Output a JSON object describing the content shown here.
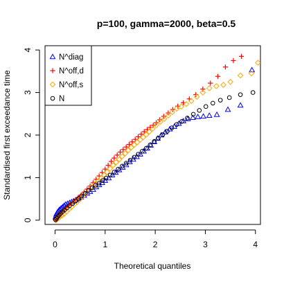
{
  "chart_data": {
    "type": "scatter",
    "title": "p=100, gamma=2000, beta=0.5",
    "xlabel": "Theoretical quantiles",
    "ylabel": "Standardised first exceedance time",
    "xlim": [
      -0.2,
      4.1
    ],
    "ylim": [
      -0.1,
      4.1
    ],
    "xticks": [
      0,
      1,
      2,
      3,
      4
    ],
    "yticks": [
      0,
      1,
      2,
      3,
      4
    ],
    "legend_position": "top-left",
    "grid": false,
    "series": [
      {
        "name": "N^diag",
        "marker": "triangle",
        "color": "#0000ff",
        "points": [
          [
            0.01,
            0.07
          ],
          [
            0.02,
            0.11
          ],
          [
            0.03,
            0.15
          ],
          [
            0.05,
            0.19
          ],
          [
            0.07,
            0.22
          ],
          [
            0.09,
            0.25
          ],
          [
            0.12,
            0.28
          ],
          [
            0.15,
            0.31
          ],
          [
            0.18,
            0.34
          ],
          [
            0.21,
            0.37
          ],
          [
            0.25,
            0.39
          ],
          [
            0.29,
            0.41
          ],
          [
            0.33,
            0.43
          ],
          [
            0.37,
            0.45
          ],
          [
            0.42,
            0.48
          ],
          [
            0.47,
            0.51
          ],
          [
            0.52,
            0.54
          ],
          [
            0.58,
            0.58
          ],
          [
            0.64,
            0.63
          ],
          [
            0.7,
            0.67
          ],
          [
            0.76,
            0.72
          ],
          [
            0.82,
            0.78
          ],
          [
            0.88,
            0.83
          ],
          [
            0.94,
            0.88
          ],
          [
            1.0,
            0.93
          ],
          [
            1.07,
            0.99
          ],
          [
            1.14,
            1.06
          ],
          [
            1.21,
            1.12
          ],
          [
            1.28,
            1.18
          ],
          [
            1.35,
            1.24
          ],
          [
            1.42,
            1.3
          ],
          [
            1.49,
            1.37
          ],
          [
            1.56,
            1.43
          ],
          [
            1.63,
            1.49
          ],
          [
            1.7,
            1.55
          ],
          [
            1.77,
            1.62
          ],
          [
            1.84,
            1.69
          ],
          [
            1.91,
            1.76
          ],
          [
            1.98,
            1.84
          ],
          [
            2.05,
            1.92
          ],
          [
            2.12,
            2.0
          ],
          [
            2.2,
            2.07
          ],
          [
            2.29,
            2.14
          ],
          [
            2.38,
            2.2
          ],
          [
            2.47,
            2.27
          ],
          [
            2.56,
            2.33
          ],
          [
            2.65,
            2.38
          ],
          [
            2.75,
            2.41
          ],
          [
            2.85,
            2.43
          ],
          [
            2.96,
            2.44
          ],
          [
            3.08,
            2.46
          ],
          [
            3.23,
            2.48
          ],
          [
            3.45,
            2.6
          ],
          [
            3.7,
            2.7
          ],
          [
            3.93,
            3.53
          ]
        ]
      },
      {
        "name": "N^off,d",
        "marker": "plus",
        "color": "#ff0000",
        "points": [
          [
            0.01,
            0.0
          ],
          [
            0.03,
            0.03
          ],
          [
            0.05,
            0.06
          ],
          [
            0.08,
            0.1
          ],
          [
            0.11,
            0.14
          ],
          [
            0.15,
            0.19
          ],
          [
            0.19,
            0.24
          ],
          [
            0.24,
            0.3
          ],
          [
            0.29,
            0.36
          ],
          [
            0.34,
            0.41
          ],
          [
            0.4,
            0.47
          ],
          [
            0.46,
            0.53
          ],
          [
            0.52,
            0.59
          ],
          [
            0.58,
            0.66
          ],
          [
            0.64,
            0.73
          ],
          [
            0.7,
            0.8
          ],
          [
            0.76,
            0.88
          ],
          [
            0.82,
            0.96
          ],
          [
            0.88,
            1.04
          ],
          [
            0.94,
            1.12
          ],
          [
            1.0,
            1.2
          ],
          [
            1.06,
            1.29
          ],
          [
            1.12,
            1.38
          ],
          [
            1.18,
            1.46
          ],
          [
            1.24,
            1.53
          ],
          [
            1.3,
            1.6
          ],
          [
            1.36,
            1.66
          ],
          [
            1.42,
            1.72
          ],
          [
            1.48,
            1.78
          ],
          [
            1.54,
            1.84
          ],
          [
            1.6,
            1.9
          ],
          [
            1.66,
            1.96
          ],
          [
            1.72,
            2.02
          ],
          [
            1.78,
            2.08
          ],
          [
            1.84,
            2.13
          ],
          [
            1.9,
            2.18
          ],
          [
            1.96,
            2.23
          ],
          [
            2.02,
            2.29
          ],
          [
            2.09,
            2.36
          ],
          [
            2.17,
            2.44
          ],
          [
            2.26,
            2.52
          ],
          [
            2.35,
            2.6
          ],
          [
            2.45,
            2.68
          ],
          [
            2.56,
            2.76
          ],
          [
            2.68,
            2.85
          ],
          [
            2.81,
            2.95
          ],
          [
            2.95,
            3.08
          ],
          [
            3.1,
            3.22
          ],
          [
            3.25,
            3.38
          ],
          [
            3.4,
            3.6
          ],
          [
            3.56,
            3.75
          ],
          [
            3.72,
            3.85
          ]
        ]
      },
      {
        "name": "N^off,s",
        "marker": "diamond",
        "color": "#ffa500",
        "points": [
          [
            0.02,
            0.0
          ],
          [
            0.04,
            0.02
          ],
          [
            0.07,
            0.05
          ],
          [
            0.1,
            0.08
          ],
          [
            0.14,
            0.11
          ],
          [
            0.18,
            0.15
          ],
          [
            0.23,
            0.2
          ],
          [
            0.28,
            0.26
          ],
          [
            0.33,
            0.31
          ],
          [
            0.38,
            0.37
          ],
          [
            0.44,
            0.43
          ],
          [
            0.5,
            0.5
          ],
          [
            0.56,
            0.57
          ],
          [
            0.62,
            0.64
          ],
          [
            0.68,
            0.71
          ],
          [
            0.74,
            0.78
          ],
          [
            0.8,
            0.85
          ],
          [
            0.86,
            0.92
          ],
          [
            0.92,
            0.99
          ],
          [
            0.98,
            1.06
          ],
          [
            1.04,
            1.13
          ],
          [
            1.1,
            1.21
          ],
          [
            1.16,
            1.29
          ],
          [
            1.22,
            1.36
          ],
          [
            1.28,
            1.43
          ],
          [
            1.34,
            1.5
          ],
          [
            1.4,
            1.57
          ],
          [
            1.46,
            1.64
          ],
          [
            1.52,
            1.71
          ],
          [
            1.58,
            1.77
          ],
          [
            1.64,
            1.83
          ],
          [
            1.7,
            1.89
          ],
          [
            1.76,
            1.95
          ],
          [
            1.82,
            2.01
          ],
          [
            1.88,
            2.08
          ],
          [
            1.95,
            2.15
          ],
          [
            2.02,
            2.23
          ],
          [
            2.1,
            2.31
          ],
          [
            2.18,
            2.38
          ],
          [
            2.26,
            2.46
          ],
          [
            2.34,
            2.54
          ],
          [
            2.43,
            2.62
          ],
          [
            2.52,
            2.67
          ],
          [
            2.62,
            2.73
          ],
          [
            2.72,
            2.8
          ],
          [
            2.83,
            2.9
          ],
          [
            2.95,
            3.0
          ],
          [
            3.08,
            3.1
          ],
          [
            3.22,
            3.15
          ],
          [
            3.36,
            3.18
          ],
          [
            3.5,
            3.25
          ],
          [
            3.7,
            3.4
          ],
          [
            3.92,
            3.45
          ],
          [
            4.05,
            3.7
          ]
        ]
      },
      {
        "name": "N",
        "marker": "circle",
        "color": "#000000",
        "points": [
          [
            0.01,
            0.01
          ],
          [
            0.03,
            0.04
          ],
          [
            0.05,
            0.08
          ],
          [
            0.08,
            0.12
          ],
          [
            0.11,
            0.16
          ],
          [
            0.15,
            0.2
          ],
          [
            0.19,
            0.24
          ],
          [
            0.24,
            0.29
          ],
          [
            0.29,
            0.34
          ],
          [
            0.35,
            0.39
          ],
          [
            0.41,
            0.45
          ],
          [
            0.47,
            0.51
          ],
          [
            0.53,
            0.57
          ],
          [
            0.6,
            0.63
          ],
          [
            0.67,
            0.7
          ],
          [
            0.74,
            0.76
          ],
          [
            0.81,
            0.82
          ],
          [
            0.88,
            0.87
          ],
          [
            0.95,
            0.93
          ],
          [
            1.02,
            0.99
          ],
          [
            1.1,
            1.06
          ],
          [
            1.18,
            1.13
          ],
          [
            1.26,
            1.2
          ],
          [
            1.34,
            1.27
          ],
          [
            1.42,
            1.34
          ],
          [
            1.5,
            1.41
          ],
          [
            1.58,
            1.48
          ],
          [
            1.66,
            1.55
          ],
          [
            1.74,
            1.62
          ],
          [
            1.82,
            1.69
          ],
          [
            1.9,
            1.77
          ],
          [
            1.98,
            1.85
          ],
          [
            2.06,
            1.93
          ],
          [
            2.15,
            2.01
          ],
          [
            2.24,
            2.09
          ],
          [
            2.33,
            2.17
          ],
          [
            2.43,
            2.25
          ],
          [
            2.53,
            2.32
          ],
          [
            2.64,
            2.4
          ],
          [
            2.76,
            2.49
          ],
          [
            2.88,
            2.58
          ],
          [
            3.01,
            2.67
          ],
          [
            3.15,
            2.75
          ],
          [
            3.3,
            2.82
          ],
          [
            3.48,
            2.88
          ],
          [
            3.7,
            2.95
          ],
          [
            3.95,
            3.0
          ]
        ]
      }
    ]
  }
}
